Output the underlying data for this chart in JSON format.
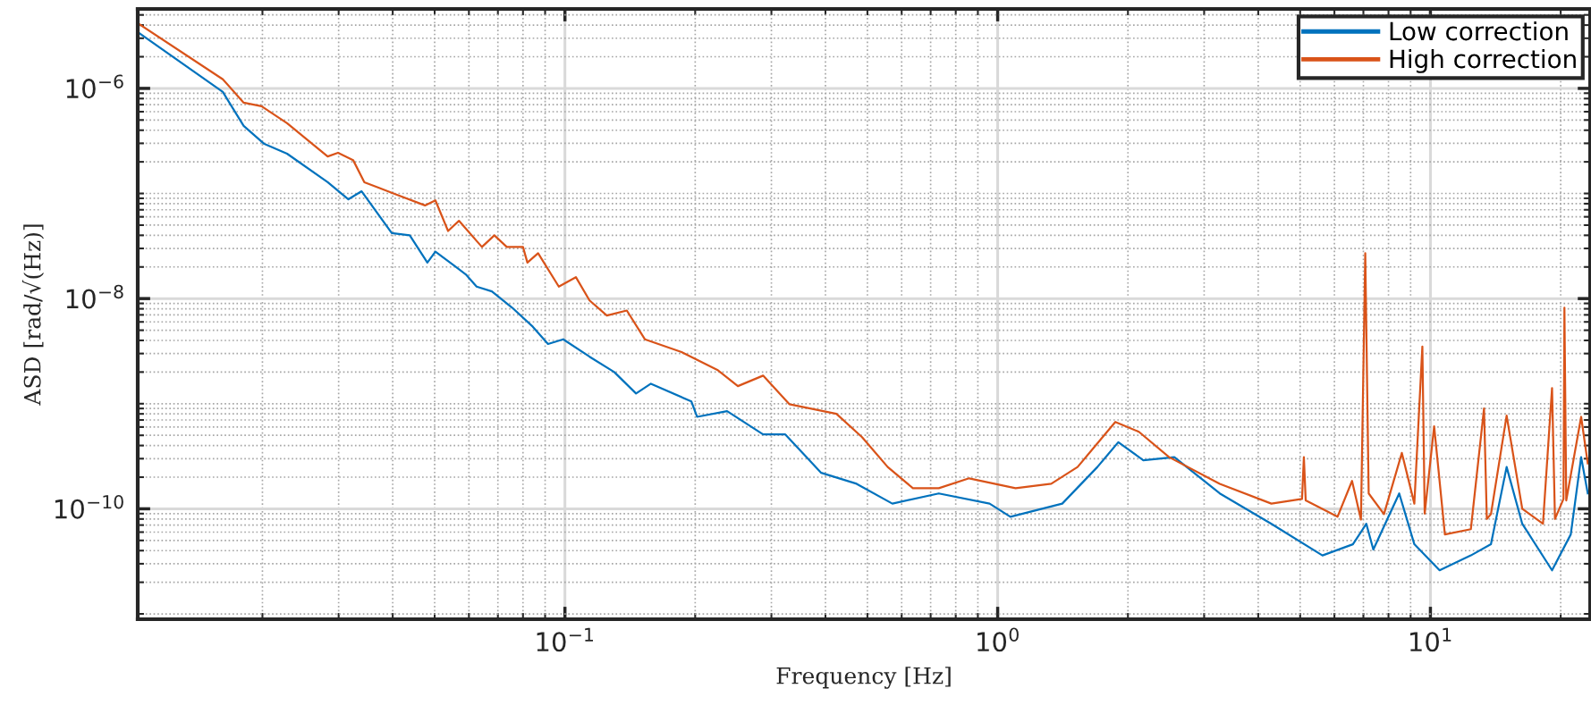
{
  "chart_data": {
    "type": "line",
    "xlabel": "Frequency [Hz]",
    "ylabel": "ASD [rad/√(Hz)]",
    "log": "xy",
    "grid": true,
    "legend": "top right",
    "line_style": "solid",
    "marker": "none",
    "xlim": [
      0.0103,
      23.4
    ],
    "ylim": [
      8.9e-12,
      5.7e-06
    ],
    "xticks": [
      {
        "value": 0.1,
        "label": "10$^{−1}$"
      },
      {
        "value": 1,
        "label": "10$^{0}$"
      },
      {
        "value": 10,
        "label": "10$^{1}$"
      }
    ],
    "yticks": [
      {
        "value": 1e-10,
        "label": "10$^{−10}$"
      },
      {
        "value": 1e-08,
        "label": "10$^{−8}$"
      },
      {
        "value": 1e-06,
        "label": "10$^{−6}$"
      }
    ],
    "series": [
      {
        "name": "Low correction",
        "color": "#0072bd",
        "x": [
          0.0103,
          0.0162,
          0.0181,
          0.0202,
          0.0228,
          0.0283,
          0.0316,
          0.0339,
          0.0398,
          0.0438,
          0.0481,
          0.0502,
          0.059,
          0.0625,
          0.0678,
          0.0755,
          0.0843,
          0.0914,
          0.0991,
          0.114,
          0.13,
          0.146,
          0.158,
          0.196,
          0.202,
          0.237,
          0.287,
          0.323,
          0.391,
          0.472,
          0.571,
          0.731,
          0.958,
          1.07,
          1.41,
          1.7,
          1.9,
          2.17,
          2.56,
          3.26,
          4.29,
          5.63,
          6.62,
          7.11,
          7.38,
          8.47,
          9.18,
          10.5,
          12.4,
          13.8,
          15.0,
          16.3,
          19.1,
          21.1,
          22.3,
          23.1
        ],
        "values": [
          3.44e-06,
          9.25e-07,
          4.4e-07,
          2.96e-07,
          2.39e-07,
          1.28e-07,
          8.8e-08,
          1.05e-07,
          4.2e-08,
          4e-08,
          2.2e-08,
          2.8e-08,
          1.7e-08,
          1.3e-08,
          1.17e-08,
          8.2e-09,
          5.4e-09,
          3.7e-09,
          4.1e-09,
          2.8e-09,
          2e-09,
          1.25e-09,
          1.55e-09,
          1.05e-09,
          7.5e-10,
          8.5e-10,
          5.1e-10,
          5.1e-10,
          2.2e-10,
          1.73e-10,
          1.12e-10,
          1.4e-10,
          1.12e-10,
          8.4e-11,
          1.12e-10,
          2.5e-10,
          4.3e-10,
          2.9e-10,
          3.1e-10,
          1.4e-10,
          7.2e-11,
          3.6e-11,
          4.6e-11,
          7.2e-11,
          4.1e-11,
          1.4e-10,
          4.6e-11,
          2.6e-11,
          3.6e-11,
          4.6e-11,
          2.5e-10,
          7.2e-11,
          2.6e-11,
          5.7e-11,
          3.1e-10,
          1.4e-10
        ]
      },
      {
        "name": "High correction",
        "color": "#d95319",
        "x": [
          0.0103,
          0.0162,
          0.0181,
          0.0199,
          0.0228,
          0.0283,
          0.0299,
          0.0324,
          0.0344,
          0.0372,
          0.0404,
          0.0475,
          0.0502,
          0.0537,
          0.0569,
          0.0643,
          0.0687,
          0.0734,
          0.08,
          0.0819,
          0.0867,
          0.0968,
          0.106,
          0.114,
          0.125,
          0.139,
          0.153,
          0.186,
          0.225,
          0.251,
          0.287,
          0.33,
          0.424,
          0.486,
          0.557,
          0.637,
          0.731,
          0.859,
          1.1,
          1.33,
          1.53,
          1.87,
          2.12,
          2.49,
          3.26,
          4.29,
          5.05,
          5.1,
          5.15,
          6.1,
          6.59,
          6.91,
          7.07,
          7.2,
          7.81,
          8.59,
          9.18,
          9.58,
          9.7,
          10.2,
          10.8,
          12.4,
          13.3,
          13.5,
          13.8,
          15.0,
          16.3,
          18.2,
          19.1,
          19.4,
          20.3,
          20.4,
          20.6,
          22.3,
          23.1
        ],
        "values": [
          4.18e-06,
          1.22e-06,
          7.31e-07,
          6.76e-07,
          4.66e-07,
          2.25e-07,
          2.44e-07,
          2.08e-07,
          1.28e-07,
          1.13e-07,
          9.9e-08,
          7.7e-08,
          8.6e-08,
          4.4e-08,
          5.5e-08,
          3.1e-08,
          4e-08,
          3.1e-08,
          3.1e-08,
          2.2e-08,
          2.7e-08,
          1.3e-08,
          1.6e-08,
          9.6e-09,
          6.9e-09,
          7.7e-09,
          4.1e-09,
          3.1e-09,
          2.1e-09,
          1.47e-09,
          1.85e-09,
          9.9e-10,
          8e-10,
          4.8e-10,
          2.5e-10,
          1.57e-10,
          1.57e-10,
          1.95e-10,
          1.57e-10,
          1.73e-10,
          2.5e-10,
          6.7e-10,
          5.4e-10,
          3.1e-10,
          1.73e-10,
          1.12e-10,
          1.24e-10,
          3.1e-10,
          1.2e-10,
          8.4e-11,
          1.84e-10,
          7.9e-11,
          2.7e-08,
          1.4e-10,
          8.9e-11,
          3.4e-10,
          1.12e-10,
          3.5e-09,
          9e-11,
          6.1e-10,
          5.7e-11,
          6.4e-11,
          9e-10,
          8e-11,
          8.9e-11,
          7.7e-10,
          1e-10,
          7.2e-11,
          1.41e-09,
          8e-11,
          1.24e-10,
          8.2e-09,
          1.2e-10,
          7.5e-10,
          2.7e-10
        ]
      }
    ]
  }
}
